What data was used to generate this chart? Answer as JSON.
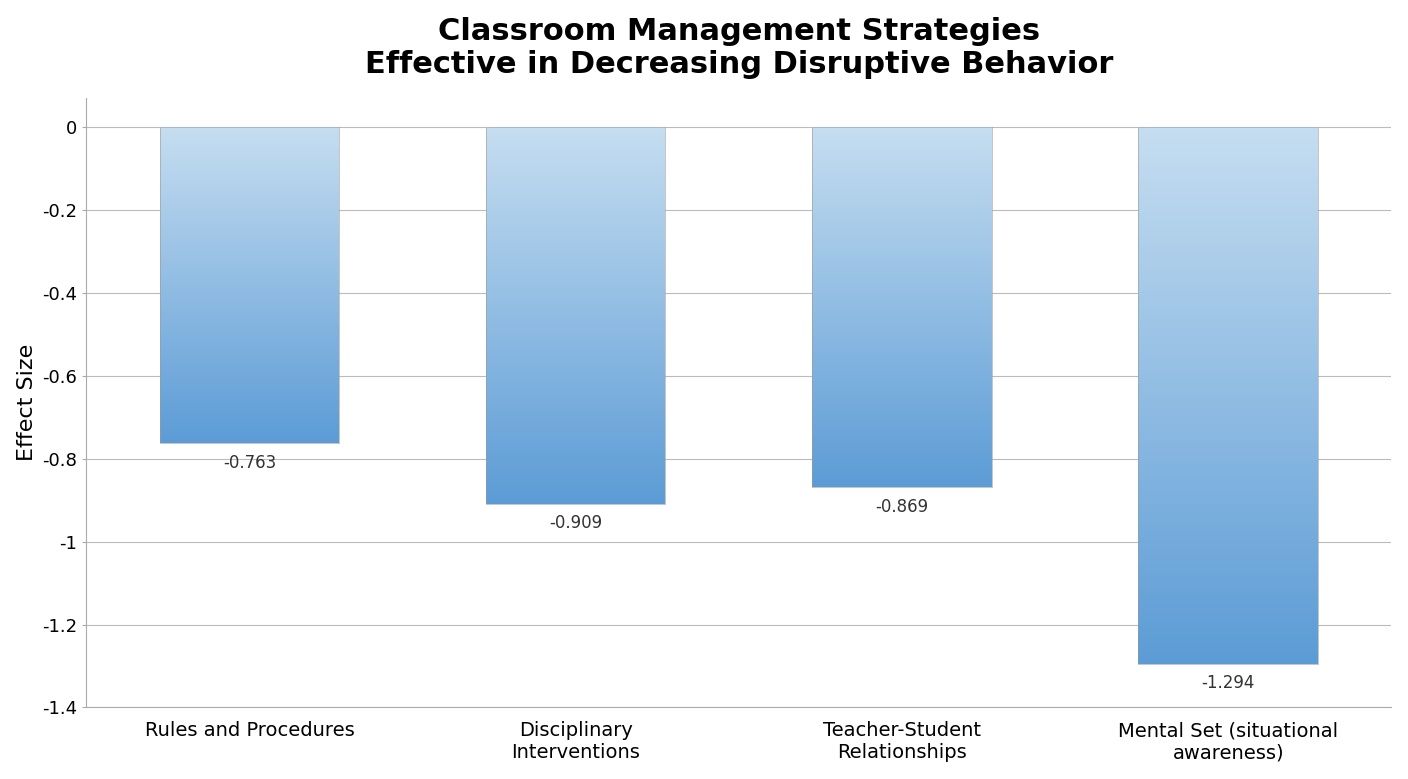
{
  "title": "Classroom Management Strategies\nEffective in Decreasing Disruptive Behavior",
  "categories": [
    "Rules and Procedures",
    "Disciplinary\nInterventions",
    "Teacher-Student\nRelationships",
    "Mental Set (situational\nawareness)"
  ],
  "values": [
    -0.763,
    -0.909,
    -0.869,
    -1.294
  ],
  "value_labels": [
    "-0.763",
    "-0.909",
    "-0.869",
    "-1.294"
  ],
  "ylabel": "Effect Size",
  "ylim": [
    -1.4,
    0.07
  ],
  "yticks": [
    0,
    -0.2,
    -0.4,
    -0.6,
    -0.8,
    -1.0,
    -1.2,
    -1.4
  ],
  "bar_color_top": "#c5ddf0",
  "bar_color_bottom": "#5b9bd5",
  "background_color": "#ffffff",
  "grid_color": "#bbbbbb",
  "title_fontsize": 22,
  "label_fontsize": 14,
  "tick_fontsize": 13,
  "value_label_fontsize": 12,
  "bar_width": 0.55
}
